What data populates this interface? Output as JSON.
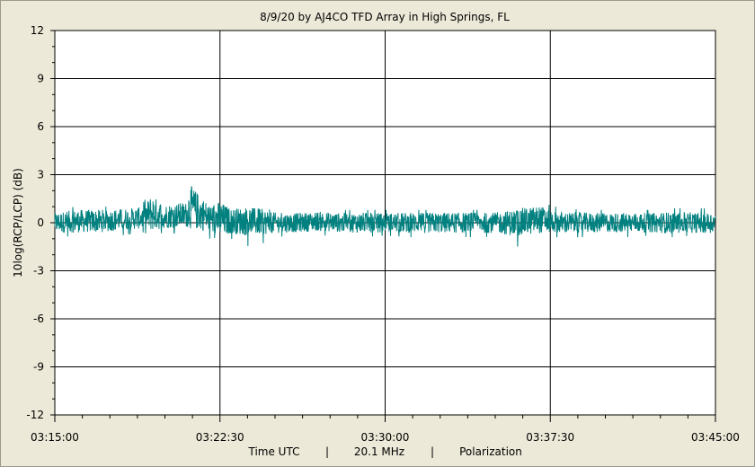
{
  "chart_data": {
    "type": "line",
    "title": "8/9/20  by  AJ4CO TFD Array  in  High Springs, FL",
    "ylabel": "10log(RCP/LCP) (dB)",
    "xlabel_parts": [
      "Time UTC",
      "|",
      "20.1 MHz",
      "|",
      "Polarization"
    ],
    "x_tick_labels": [
      "03:15:00",
      "03:22:30",
      "03:30:00",
      "03:37:30",
      "03:45:00"
    ],
    "y_tick_labels": [
      "12",
      "9",
      "6",
      "3",
      "0",
      "-3",
      "-6",
      "-9",
      "-12"
    ],
    "xlim": [
      "03:15:00",
      "03:45:00"
    ],
    "ylim": [
      -12,
      12
    ],
    "grid": true,
    "series": [
      {
        "color": "#00807f",
        "x": [
          "03:15:00",
          "03:16:00",
          "03:17:00",
          "03:18:00",
          "03:19:00",
          "03:19:23",
          "03:20:00",
          "03:21:00",
          "03:21:08",
          "03:22:00",
          "03:22:30",
          "03:23:00",
          "03:24:00",
          "03:25:00",
          "03:26:00",
          "03:27:00",
          "03:28:00",
          "03:29:00",
          "03:30:00",
          "03:31:00",
          "03:32:00",
          "03:33:00",
          "03:34:00",
          "03:35:00",
          "03:36:00",
          "03:37:00",
          "03:38:00",
          "03:39:00",
          "03:40:00",
          "03:41:00",
          "03:42:00",
          "03:43:00",
          "03:44:00",
          "03:45:00"
        ],
        "mean": [
          0.0,
          0.1,
          0.1,
          0.2,
          0.3,
          0.6,
          0.4,
          0.5,
          1.0,
          0.3,
          0.2,
          0.1,
          0.1,
          0.0,
          0.0,
          0.1,
          0.0,
          0.0,
          0.0,
          0.0,
          0.0,
          0.0,
          0.0,
          0.0,
          0.0,
          0.2,
          0.0,
          0.0,
          0.0,
          0.0,
          0.0,
          0.0,
          0.0,
          0.0
        ],
        "upper": [
          0.9,
          1.0,
          1.0,
          1.0,
          1.2,
          2.2,
          1.4,
          1.4,
          3.2,
          1.3,
          2.1,
          1.1,
          0.9,
          0.8,
          0.8,
          0.8,
          0.8,
          0.8,
          0.8,
          0.8,
          0.8,
          0.8,
          0.8,
          0.8,
          0.8,
          1.3,
          0.9,
          0.8,
          0.8,
          0.8,
          0.8,
          0.9,
          0.9,
          0.9
        ],
        "lower": [
          -0.8,
          -0.9,
          -0.9,
          -0.8,
          -0.6,
          -0.8,
          -0.6,
          -0.7,
          -0.5,
          -1.0,
          -0.9,
          -1.0,
          -1.6,
          -0.9,
          -0.8,
          -0.8,
          -0.8,
          -0.9,
          -0.8,
          -0.9,
          -0.9,
          -0.9,
          -0.9,
          -0.9,
          -1.5,
          -1.0,
          -0.9,
          -0.9,
          -0.8,
          -0.9,
          -0.8,
          -0.9,
          -0.8,
          -0.8
        ]
      }
    ]
  }
}
